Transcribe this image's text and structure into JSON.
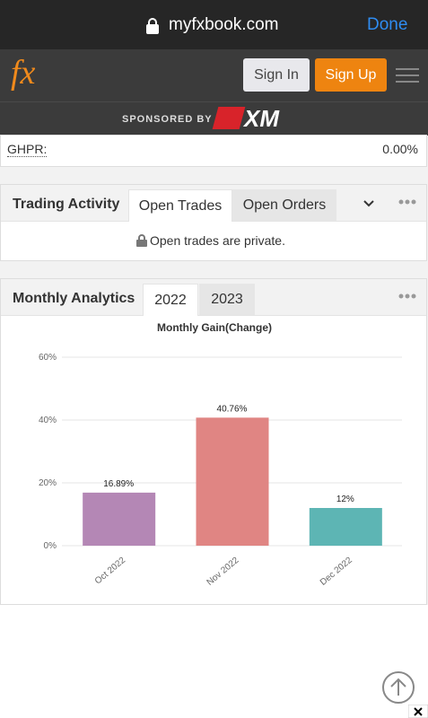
{
  "browser": {
    "url": "myfxbook.com",
    "done": "Done"
  },
  "header": {
    "logo": "fx",
    "sign_in": "Sign In",
    "sign_up": "Sign Up",
    "sponsored_by": "SPONSORED BY",
    "sponsor": "XM"
  },
  "ghpr": {
    "label": "GHPR:",
    "value": "0.00%"
  },
  "trading_activity": {
    "title": "Trading Activity",
    "tabs": [
      "Open Trades",
      "Open Orders"
    ],
    "message": "Open trades are private."
  },
  "monthly_analytics": {
    "title": "Monthly Analytics",
    "tabs": [
      "2022",
      "2023"
    ]
  },
  "chart_data": {
    "type": "bar",
    "title": "Monthly Gain(Change)",
    "categories": [
      "Oct 2022",
      "Nov 2022",
      "Dec 2022"
    ],
    "values": [
      16.89,
      40.76,
      12
    ],
    "value_labels": [
      "16.89%",
      "40.76%",
      "12%"
    ],
    "colors": [
      "#b487b5",
      "#e08583",
      "#5db5b4"
    ],
    "ylim": [
      0,
      60
    ],
    "yticks": [
      {
        "value": 0,
        "label": "0%"
      },
      {
        "value": 20,
        "label": "20%"
      },
      {
        "value": 40,
        "label": "40%"
      },
      {
        "value": 60,
        "label": "60%"
      }
    ],
    "grid": true
  }
}
